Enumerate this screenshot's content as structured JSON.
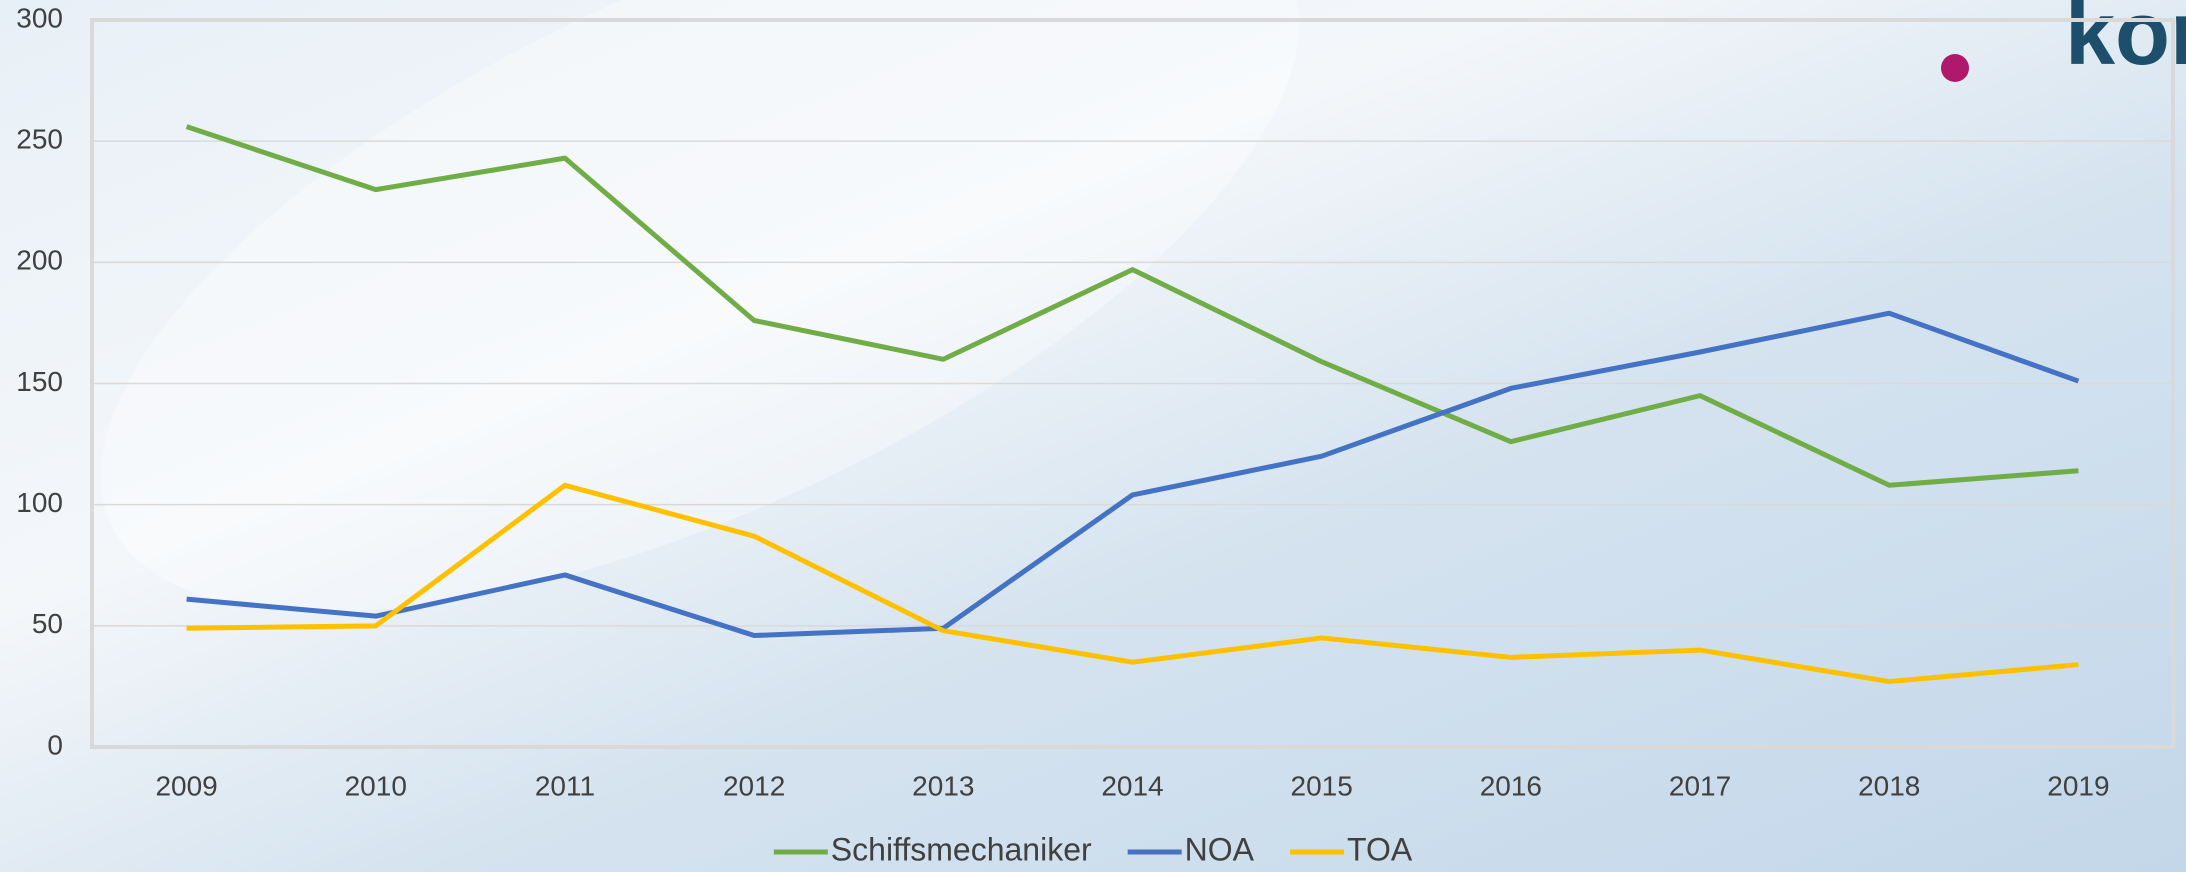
{
  "logo": "kongres",
  "chart_data": {
    "type": "line",
    "categories": [
      "2009",
      "2010",
      "2011",
      "2012",
      "2013",
      "2014",
      "2015",
      "2016",
      "2017",
      "2018",
      "2019"
    ],
    "series": [
      {
        "name": "Schiffsmechaniker",
        "color": "#70ad47",
        "values": [
          256,
          230,
          243,
          176,
          160,
          197,
          159,
          126,
          145,
          108,
          114
        ]
      },
      {
        "name": "NOA",
        "color": "#4472c4",
        "values": [
          61,
          54,
          71,
          46,
          49,
          104,
          120,
          148,
          163,
          179,
          151
        ]
      },
      {
        "name": "TOA",
        "color": "#ffc000",
        "values": [
          49,
          50,
          108,
          87,
          48,
          35,
          45,
          37,
          40,
          27,
          34
        ]
      }
    ],
    "ylim": [
      0,
      300
    ],
    "yticks": [
      0,
      50,
      100,
      150,
      200,
      250,
      300
    ],
    "grid": true,
    "legend": "bottom"
  }
}
